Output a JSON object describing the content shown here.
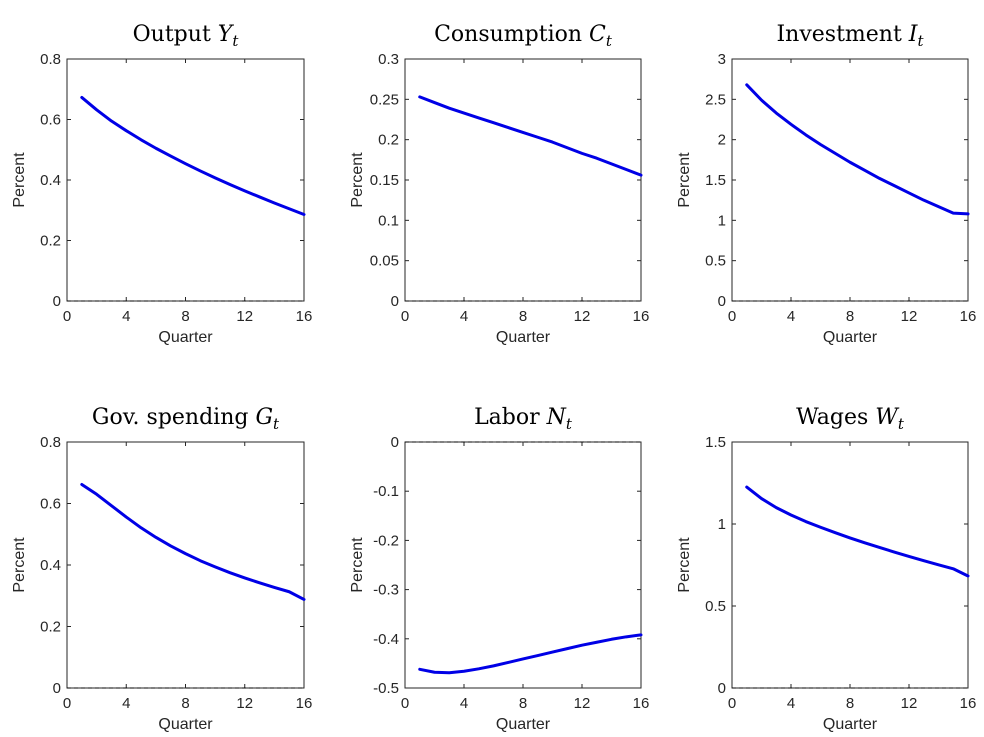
{
  "chart_data": [
    {
      "type": "line",
      "title": "Output ",
      "title_symbol": "Y",
      "title_subscript": "t",
      "xlabel": "Quarter",
      "ylabel": "Percent",
      "xlim": [
        0,
        16
      ],
      "ylim": [
        0,
        0.8
      ],
      "xticks": [
        0,
        4,
        8,
        12,
        16
      ],
      "yticks": [
        0,
        0.2,
        0.4,
        0.6,
        0.8
      ],
      "ytick_labels": [
        "0",
        "0.2",
        "0.4",
        "0.6",
        "0.8"
      ],
      "zero_line": true,
      "series": [
        {
          "x": [
            1,
            2,
            3,
            4,
            5,
            6,
            7,
            8,
            9,
            10,
            11,
            12,
            13,
            14,
            15,
            16
          ],
          "values": [
            0.673,
            0.632,
            0.595,
            0.563,
            0.533,
            0.505,
            0.479,
            0.454,
            0.43,
            0.407,
            0.385,
            0.364,
            0.344,
            0.324,
            0.305,
            0.286
          ],
          "color": "#0000e6"
        }
      ]
    },
    {
      "type": "line",
      "title": "Consumption ",
      "title_symbol": "C",
      "title_subscript": "t",
      "xlabel": "Quarter",
      "ylabel": "Percent",
      "xlim": [
        0,
        16
      ],
      "ylim": [
        0,
        0.3
      ],
      "xticks": [
        0,
        4,
        8,
        12,
        16
      ],
      "yticks": [
        0,
        0.05,
        0.1,
        0.15,
        0.2,
        0.25,
        0.3
      ],
      "ytick_labels": [
        "0",
        "0.05",
        "0.1",
        "0.15",
        "0.2",
        "0.25",
        "0.3"
      ],
      "zero_line": true,
      "series": [
        {
          "x": [
            1,
            2,
            3,
            4,
            5,
            6,
            7,
            8,
            9,
            10,
            11,
            12,
            13,
            14,
            15,
            16
          ],
          "values": [
            0.253,
            0.246,
            0.239,
            0.233,
            0.227,
            0.221,
            0.215,
            0.209,
            0.203,
            0.197,
            0.19,
            0.183,
            0.177,
            0.17,
            0.163,
            0.156
          ],
          "color": "#0000e6"
        }
      ]
    },
    {
      "type": "line",
      "title": "Investment ",
      "title_symbol": "I",
      "title_subscript": "t",
      "xlabel": "Quarter",
      "ylabel": "Percent",
      "xlim": [
        0,
        16
      ],
      "ylim": [
        0,
        3
      ],
      "xticks": [
        0,
        4,
        8,
        12,
        16
      ],
      "yticks": [
        0,
        0.5,
        1,
        1.5,
        2,
        2.5,
        3
      ],
      "ytick_labels": [
        "0",
        "0.5",
        "1",
        "1.5",
        "2",
        "2.5",
        "3"
      ],
      "zero_line": true,
      "series": [
        {
          "x": [
            1,
            2,
            3,
            4,
            5,
            6,
            7,
            8,
            9,
            10,
            11,
            12,
            13,
            14,
            15,
            16
          ],
          "values": [
            2.68,
            2.49,
            2.33,
            2.19,
            2.06,
            1.94,
            1.83,
            1.72,
            1.62,
            1.52,
            1.43,
            1.34,
            1.25,
            1.17,
            1.09,
            1.08
          ],
          "color": "#0000e6"
        }
      ]
    },
    {
      "type": "line",
      "title": "Gov. spending ",
      "title_symbol": "G",
      "title_subscript": "t",
      "xlabel": "Quarter",
      "ylabel": "Percent",
      "xlim": [
        0,
        16
      ],
      "ylim": [
        0,
        0.8
      ],
      "xticks": [
        0,
        4,
        8,
        12,
        16
      ],
      "yticks": [
        0,
        0.2,
        0.4,
        0.6,
        0.8
      ],
      "ytick_labels": [
        "0",
        "0.2",
        "0.4",
        "0.6",
        "0.8"
      ],
      "zero_line": true,
      "series": [
        {
          "x": [
            1,
            2,
            3,
            4,
            5,
            6,
            7,
            8,
            9,
            10,
            11,
            12,
            13,
            14,
            15,
            16
          ],
          "values": [
            0.662,
            0.63,
            0.593,
            0.556,
            0.521,
            0.49,
            0.462,
            0.437,
            0.414,
            0.394,
            0.375,
            0.358,
            0.342,
            0.327,
            0.313,
            0.288
          ],
          "color": "#0000e6"
        }
      ]
    },
    {
      "type": "line",
      "title": "Labor ",
      "title_symbol": "N",
      "title_subscript": "t",
      "xlabel": "Quarter",
      "ylabel": "Percent",
      "xlim": [
        0,
        16
      ],
      "ylim": [
        -0.5,
        0
      ],
      "xticks": [
        0,
        4,
        8,
        12,
        16
      ],
      "yticks": [
        -0.5,
        -0.4,
        -0.3,
        -0.2,
        -0.1,
        0
      ],
      "ytick_labels": [
        "-0.5",
        "-0.4",
        "-0.3",
        "-0.2",
        "-0.1",
        "0"
      ],
      "zero_line": true,
      "series": [
        {
          "x": [
            1,
            2,
            3,
            4,
            5,
            6,
            7,
            8,
            9,
            10,
            11,
            12,
            13,
            14,
            15,
            16
          ],
          "values": [
            -0.462,
            -0.468,
            -0.469,
            -0.466,
            -0.461,
            -0.455,
            -0.448,
            -0.441,
            -0.434,
            -0.427,
            -0.42,
            -0.413,
            -0.407,
            -0.401,
            -0.396,
            -0.392
          ],
          "color": "#0000e6"
        }
      ]
    },
    {
      "type": "line",
      "title": "Wages ",
      "title_symbol": "W",
      "title_subscript": "t",
      "xlabel": "Quarter",
      "ylabel": "Percent",
      "xlim": [
        0,
        16
      ],
      "ylim": [
        0,
        1.5
      ],
      "xticks": [
        0,
        4,
        8,
        12,
        16
      ],
      "yticks": [
        0,
        0.5,
        1,
        1.5
      ],
      "ytick_labels": [
        "0",
        "0.5",
        "1",
        "1.5"
      ],
      "zero_line": true,
      "series": [
        {
          "x": [
            1,
            2,
            3,
            4,
            5,
            6,
            7,
            8,
            9,
            10,
            11,
            12,
            13,
            14,
            15,
            16
          ],
          "values": [
            1.225,
            1.155,
            1.1,
            1.055,
            1.015,
            0.98,
            0.947,
            0.915,
            0.885,
            0.857,
            0.829,
            0.802,
            0.776,
            0.751,
            0.727,
            0.683
          ],
          "color": "#0000e6"
        }
      ]
    }
  ]
}
